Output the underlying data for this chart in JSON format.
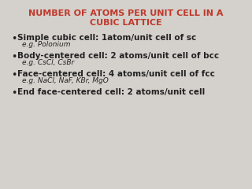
{
  "title_line1": "NUMBER OF ATOMS PER UNIT CELL IN A",
  "title_line2": "CUBIC LATTICE",
  "title_color": "#c0392b",
  "background_color": "#d4d0cb",
  "bullets": [
    {
      "main": "Simple cubic cell: 1atom/unit cell of sc",
      "sub": "e.g. Polonium"
    },
    {
      "main": "Body-centered cell: 2 atoms/unit cell of bcc",
      "sub": "e.g. CsCl, CsBr"
    },
    {
      "main": "Face-centered cell: 4 atoms/unit cell of fcc",
      "sub": "e.g. NaCl, NaF, KBr, MgO"
    },
    {
      "main": "End face-centered cell: 2 atoms/unit cell",
      "sub": null
    }
  ],
  "title_fontsize": 8.0,
  "bullet_fontsize": 7.5,
  "sub_fontsize": 6.5,
  "text_color": "#222222"
}
